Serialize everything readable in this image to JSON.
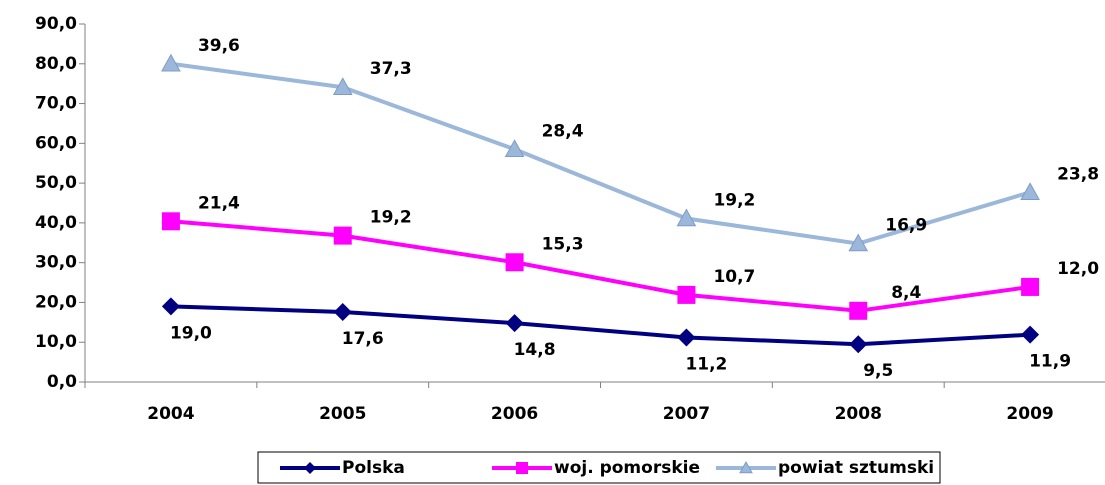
{
  "chart_data": {
    "type": "stacked-line",
    "categories": [
      "2004",
      "2005",
      "2006",
      "2007",
      "2008",
      "2009"
    ],
    "series": [
      {
        "name": "Polska",
        "color": "#000080",
        "marker": "diamond",
        "values": [
          19.0,
          17.6,
          14.8,
          11.2,
          9.5,
          11.9
        ],
        "value_labels": [
          "19,0",
          "17,6",
          "14,8",
          "11,2",
          "9,5",
          "11,9"
        ]
      },
      {
        "name": "woj. pomorskie",
        "color": "#ff00ff",
        "marker": "square",
        "values": [
          21.4,
          19.2,
          15.3,
          10.7,
          8.4,
          12.0
        ],
        "value_labels": [
          "21,4",
          "19,2",
          "15,3",
          "10,7",
          "8,4",
          "12,0"
        ]
      },
      {
        "name": "powiat sztumski",
        "color": "#9bb7d9",
        "marker": "triangle",
        "values": [
          39.6,
          37.3,
          28.4,
          19.2,
          16.9,
          23.8
        ],
        "value_labels": [
          "39,6",
          "37,3",
          "28,4",
          "19,2",
          "16,9",
          "23,8"
        ]
      }
    ],
    "ylim": [
      0,
      90
    ],
    "yticks": [
      {
        "value": 0,
        "label": "0,0"
      },
      {
        "value": 10,
        "label": "10,0"
      },
      {
        "value": 20,
        "label": "20,0"
      },
      {
        "value": 30,
        "label": "30,0"
      },
      {
        "value": 40,
        "label": "40,0"
      },
      {
        "value": 50,
        "label": "50,0"
      },
      {
        "value": 60,
        "label": "60,0"
      },
      {
        "value": 70,
        "label": "70,0"
      },
      {
        "value": 80,
        "label": "80,0"
      },
      {
        "value": 90,
        "label": "90,0"
      }
    ],
    "legend": "bottom"
  }
}
